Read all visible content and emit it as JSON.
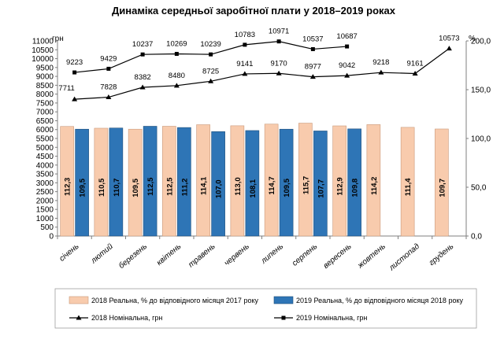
{
  "chart_data": {
    "type": "bar",
    "title": "Динаміка середньої заробітної плати у 2018–2019 роках",
    "y_left_unit": "грн",
    "y_right_unit": "%",
    "y_left_lim": [
      0,
      11000
    ],
    "y_left_ticks": [
      "0",
      "500",
      "1000",
      "1500",
      "2000",
      "2500",
      "3000",
      "3500",
      "4000",
      "4500",
      "5000",
      "5500",
      "6000",
      "6500",
      "7000",
      "7500",
      "8000",
      "8500",
      "9000",
      "9500",
      "10000",
      "10500",
      "11000"
    ],
    "y_right_lim": [
      0,
      200
    ],
    "y_right_ticks": [
      "0,0",
      "50,0",
      "100,0",
      "150,0",
      "200,0"
    ],
    "categories": [
      "січень",
      "лютий",
      "березень",
      "квітень",
      "травень",
      "червень",
      "липень",
      "серпень",
      "вересень",
      "жовтень",
      "листопад",
      "грудень"
    ],
    "bar_series": [
      {
        "name": "2018 Реальна, % до відповідного місяця 2017 року",
        "color": "#f8cbad",
        "values": [
          112.3,
          110.5,
          109.5,
          112.5,
          114.1,
          113.0,
          114.7,
          115.7,
          112.9,
          114.2,
          111.4,
          109.7
        ],
        "labels": [
          "112,3",
          "110,5",
          "109,5",
          "112,5",
          "114,1",
          "113,0",
          "114,7",
          "115,7",
          "112,9",
          "114,2",
          "111,4",
          "109,7"
        ]
      },
      {
        "name": "2019 Реальна, % до відповідного місяця 2018 року",
        "color": "#2e75b6",
        "values": [
          109.5,
          110.7,
          112.5,
          111.2,
          107.0,
          108.1,
          109.5,
          107.7,
          109.8
        ],
        "labels": [
          "109,5",
          "110,7",
          "112,5",
          "111,2",
          "107,0",
          "108,1",
          "109,5",
          "107,7",
          "109,8"
        ]
      }
    ],
    "line_series": [
      {
        "name": "2018 Номінальна, грн",
        "marker": "triangle",
        "values": [
          7711,
          7828,
          8382,
          8480,
          8725,
          9141,
          9170,
          8977,
          9042,
          9218,
          9161,
          10573
        ],
        "labels": [
          "7711",
          "7828",
          "8382",
          "8480",
          "8725",
          "9141",
          "9170",
          "8977",
          "9042",
          "9218",
          "9161",
          "10573"
        ]
      },
      {
        "name": "2019 Номінальна, грн",
        "marker": "square",
        "values": [
          9223,
          9429,
          10237,
          10269,
          10239,
          10783,
          10971,
          10537,
          10687
        ],
        "labels": [
          "9223",
          "9429",
          "10237",
          "10269",
          "10239",
          "10783",
          "10971",
          "10537",
          "10687"
        ]
      }
    ]
  }
}
